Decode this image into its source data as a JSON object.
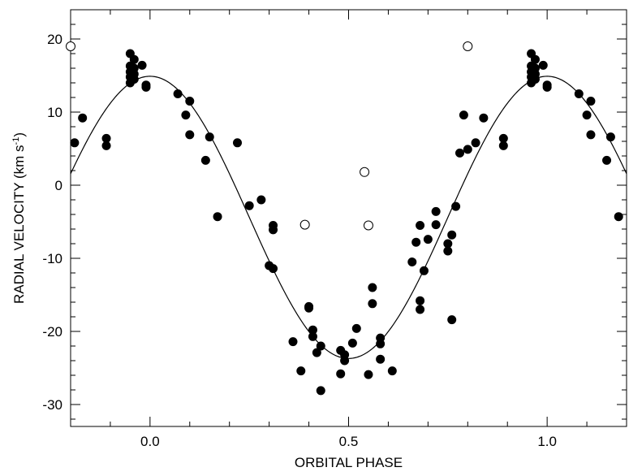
{
  "chart_data": {
    "type": "scatter",
    "title": "",
    "xlabel": "ORBITAL PHASE",
    "ylabel_main": "RADIAL VELOCITY (km s",
    "ylabel_sup": "-1",
    "ylabel_close": ")",
    "xlim": [
      -0.2,
      1.2
    ],
    "ylim": [
      -33,
      24
    ],
    "xticks": [
      {
        "value": 0.0,
        "label": "0.0"
      },
      {
        "value": 0.5,
        "label": "0.5"
      },
      {
        "value": 1.0,
        "label": "1.0"
      }
    ],
    "yticks": [
      {
        "value": 20,
        "label": "20"
      },
      {
        "value": 10,
        "label": "10"
      },
      {
        "value": 0,
        "label": "0"
      },
      {
        "value": -10,
        "label": "-10"
      },
      {
        "value": -20,
        "label": "-20"
      },
      {
        "value": -30,
        "label": "-30"
      }
    ],
    "x_minor_step": 0.1,
    "y_minor_step": 2,
    "grid": false,
    "model_curve": {
      "gamma": -4.4,
      "K": 19.3,
      "phase_of_max": 0.0
    },
    "series": [
      {
        "marker": "filled-circle",
        "points": [
          [
            -0.19,
            5.8
          ],
          [
            -0.17,
            9.2
          ],
          [
            -0.11,
            6.4
          ],
          [
            -0.11,
            5.4
          ],
          [
            -0.05,
            18.0
          ],
          [
            -0.04,
            17.2
          ],
          [
            -0.05,
            16.3
          ],
          [
            -0.04,
            16.0
          ],
          [
            -0.05,
            15.5
          ],
          [
            -0.04,
            15.2
          ],
          [
            -0.05,
            14.8
          ],
          [
            -0.04,
            14.5
          ],
          [
            -0.05,
            14.0
          ],
          [
            -0.02,
            16.4
          ],
          [
            -0.01,
            13.7
          ],
          [
            -0.01,
            13.4
          ],
          [
            0.07,
            12.5
          ],
          [
            0.09,
            9.6
          ],
          [
            0.1,
            6.9
          ],
          [
            0.1,
            11.5
          ],
          [
            0.14,
            3.4
          ],
          [
            0.15,
            6.6
          ],
          [
            0.17,
            -4.3
          ],
          [
            0.22,
            5.8
          ],
          [
            0.25,
            -2.8
          ],
          [
            0.28,
            -2.0
          ],
          [
            0.31,
            -5.5
          ],
          [
            0.31,
            -6.1
          ],
          [
            0.3,
            -11.0
          ],
          [
            0.31,
            -11.4
          ],
          [
            0.36,
            -21.4
          ],
          [
            0.38,
            -25.4
          ],
          [
            0.4,
            -16.6
          ],
          [
            0.4,
            -16.8
          ],
          [
            0.41,
            -20.7
          ],
          [
            0.41,
            -19.8
          ],
          [
            0.42,
            -22.9
          ],
          [
            0.43,
            -22.0
          ],
          [
            0.43,
            -28.1
          ],
          [
            0.48,
            -25.8
          ],
          [
            0.48,
            -22.6
          ],
          [
            0.49,
            -24.0
          ],
          [
            0.49,
            -23.2
          ],
          [
            0.51,
            -21.6
          ],
          [
            0.52,
            -19.6
          ],
          [
            0.55,
            -25.9
          ],
          [
            0.56,
            -14.0
          ],
          [
            0.56,
            -16.2
          ],
          [
            0.58,
            -21.7
          ],
          [
            0.58,
            -23.8
          ],
          [
            0.58,
            -20.9
          ],
          [
            0.61,
            -25.4
          ],
          [
            0.66,
            -10.5
          ],
          [
            0.67,
            -7.8
          ],
          [
            0.68,
            -5.5
          ],
          [
            0.68,
            -15.8
          ],
          [
            0.68,
            -17.0
          ],
          [
            0.69,
            -11.7
          ],
          [
            0.7,
            -7.4
          ],
          [
            0.72,
            -3.6
          ],
          [
            0.72,
            -5.4
          ],
          [
            0.75,
            -8.0
          ],
          [
            0.75,
            -9.0
          ],
          [
            0.76,
            -6.8
          ],
          [
            0.76,
            -18.4
          ],
          [
            0.77,
            -2.9
          ],
          [
            0.78,
            4.4
          ],
          [
            0.79,
            9.6
          ],
          [
            0.8,
            4.9
          ],
          [
            0.82,
            5.8
          ],
          [
            0.84,
            9.2
          ],
          [
            0.89,
            6.4
          ],
          [
            0.89,
            5.4
          ],
          [
            0.96,
            18.0
          ],
          [
            0.97,
            17.2
          ],
          [
            0.96,
            16.3
          ],
          [
            0.97,
            16.0
          ],
          [
            0.96,
            15.5
          ],
          [
            0.97,
            15.2
          ],
          [
            0.96,
            14.8
          ],
          [
            0.97,
            14.5
          ],
          [
            0.96,
            14.0
          ],
          [
            0.99,
            16.4
          ],
          [
            1.0,
            13.7
          ],
          [
            1.0,
            13.4
          ],
          [
            1.08,
            12.5
          ],
          [
            1.1,
            9.6
          ],
          [
            1.11,
            6.9
          ],
          [
            1.11,
            11.5
          ],
          [
            1.15,
            3.4
          ],
          [
            1.16,
            6.6
          ],
          [
            1.18,
            -4.3
          ]
        ]
      },
      {
        "marker": "open-circle",
        "points": [
          [
            -0.2,
            19.0
          ],
          [
            0.39,
            -5.4
          ],
          [
            0.54,
            1.8
          ],
          [
            0.55,
            -5.5
          ],
          [
            0.8,
            19.0
          ]
        ]
      }
    ]
  }
}
